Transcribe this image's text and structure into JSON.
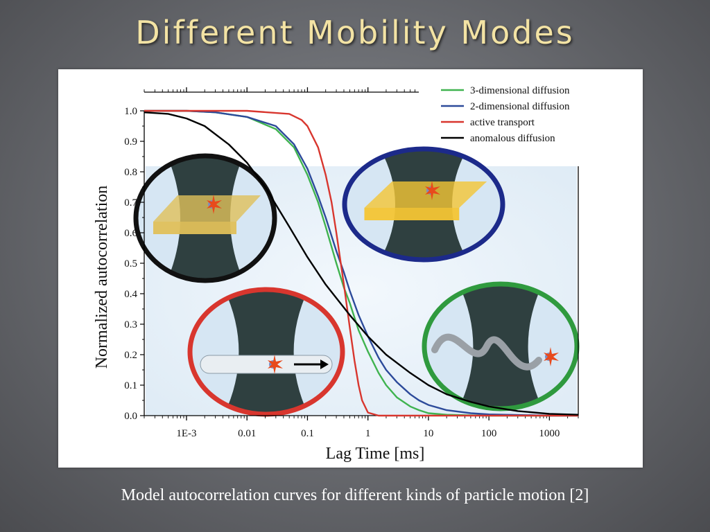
{
  "slide": {
    "title": "Different Mobility Modes",
    "caption": "Model autocorrelation curves for different kinds of particle motion [2]"
  },
  "colors": {
    "3d": "#3fb34f",
    "2d": "#2c4a9a",
    "active": "#d8362e",
    "anomalous": "#000000",
    "title": "#f3e3a4"
  },
  "inset_icons": [
    "membrane-diffusion-black-inset",
    "membrane-diffusion-blue-inset",
    "active-transport-red-inset",
    "3d-diffusion-green-inset"
  ],
  "chart_data": {
    "type": "line",
    "xlabel": "Lag Time [ms]",
    "ylabel": "Normalized autocorrelation",
    "xscale": "log",
    "xlim": [
      0.0002,
      3000
    ],
    "ylim": [
      0,
      1.0
    ],
    "x_tick_labels": [
      "1E-3",
      "0.01",
      "0.1",
      "1",
      "10",
      "100",
      "1000"
    ],
    "x_tick_values": [
      0.001,
      0.01,
      0.1,
      1,
      10,
      100,
      1000
    ],
    "y_tick_labels": [
      "0.0",
      "0.1",
      "0.2",
      "0.3",
      "0.4",
      "0.5",
      "0.6",
      "0.7",
      "0.8",
      "0.9",
      "1.0"
    ],
    "y_tick_values": [
      0,
      0.1,
      0.2,
      0.3,
      0.4,
      0.5,
      0.6,
      0.7,
      0.8,
      0.9,
      1.0
    ],
    "legend_position": "top-right",
    "series": [
      {
        "name": "3-dimensional diffusion",
        "color_key": "3d",
        "x": [
          0.0002,
          0.001,
          0.003,
          0.01,
          0.03,
          0.06,
          0.1,
          0.15,
          0.2,
          0.3,
          0.4,
          0.5,
          0.7,
          1,
          1.5,
          2,
          3,
          5,
          7,
          10,
          20,
          50,
          100,
          1000,
          3000
        ],
        "y": [
          1.0,
          1.0,
          0.995,
          0.98,
          0.94,
          0.88,
          0.79,
          0.7,
          0.62,
          0.5,
          0.42,
          0.37,
          0.28,
          0.21,
          0.14,
          0.1,
          0.06,
          0.03,
          0.018,
          0.008,
          0.003,
          0.001,
          0.0,
          0.0,
          0.0
        ]
      },
      {
        "name": "2-dimensional diffusion",
        "color_key": "2d",
        "x": [
          0.0002,
          0.001,
          0.003,
          0.01,
          0.03,
          0.06,
          0.1,
          0.15,
          0.2,
          0.3,
          0.4,
          0.5,
          0.7,
          1,
          1.5,
          2,
          3,
          5,
          7,
          10,
          20,
          50,
          100,
          1000,
          3000
        ],
        "y": [
          1.0,
          1.0,
          0.995,
          0.98,
          0.95,
          0.89,
          0.81,
          0.72,
          0.65,
          0.54,
          0.47,
          0.41,
          0.33,
          0.26,
          0.19,
          0.15,
          0.11,
          0.07,
          0.05,
          0.035,
          0.018,
          0.008,
          0.004,
          0.0,
          0.0
        ]
      },
      {
        "name": "active transport",
        "color_key": "active",
        "x": [
          0.0002,
          0.01,
          0.05,
          0.08,
          0.1,
          0.15,
          0.2,
          0.25,
          0.3,
          0.4,
          0.5,
          0.6,
          0.7,
          0.8,
          1,
          1.5,
          10,
          3000
        ],
        "y": [
          1.0,
          1.0,
          0.99,
          0.97,
          0.95,
          0.88,
          0.79,
          0.7,
          0.6,
          0.43,
          0.29,
          0.18,
          0.1,
          0.05,
          0.01,
          0.0,
          0.0,
          0.0
        ]
      },
      {
        "name": "anomalous diffusion",
        "color_key": "anomalous",
        "x": [
          0.0002,
          0.0005,
          0.001,
          0.002,
          0.005,
          0.01,
          0.02,
          0.05,
          0.1,
          0.2,
          0.5,
          1,
          2,
          5,
          10,
          20,
          50,
          100,
          300,
          1000,
          3000
        ],
        "y": [
          0.995,
          0.99,
          0.975,
          0.95,
          0.89,
          0.83,
          0.75,
          0.62,
          0.52,
          0.43,
          0.33,
          0.26,
          0.2,
          0.14,
          0.1,
          0.07,
          0.045,
          0.03,
          0.015,
          0.006,
          0.003
        ]
      }
    ]
  }
}
